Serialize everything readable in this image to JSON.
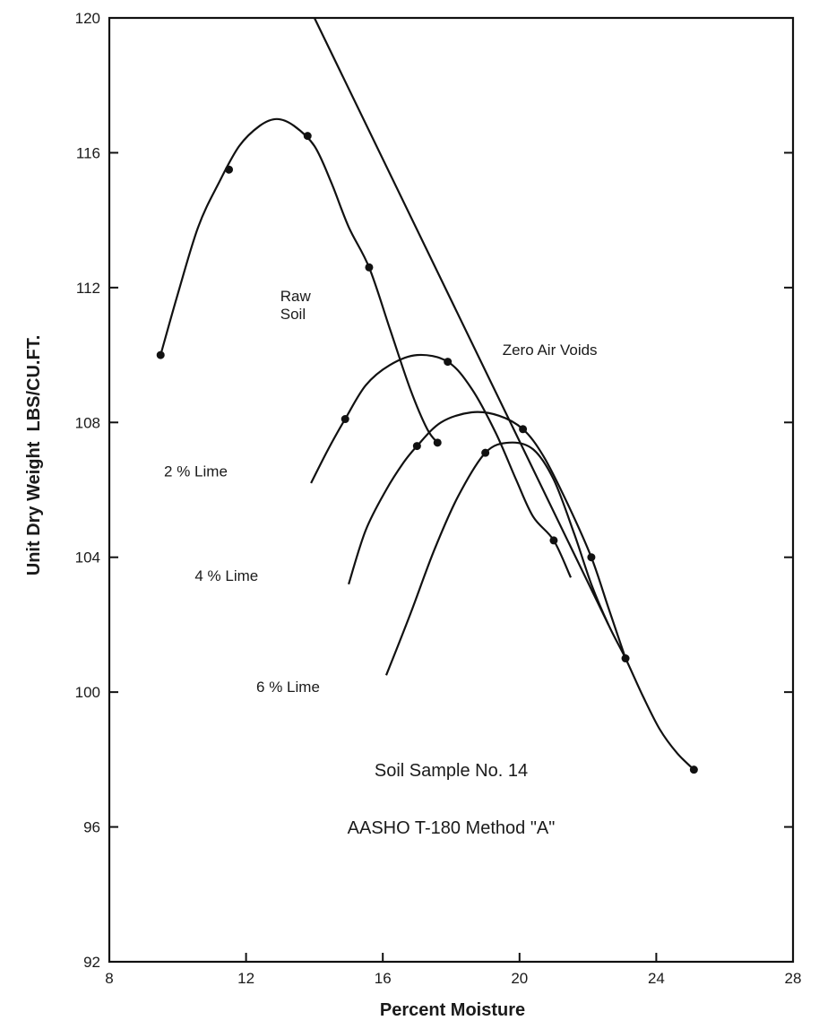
{
  "chart_data": {
    "type": "line",
    "title": "",
    "xlabel": "Percent Moisture",
    "ylabel": "Unit Dry Weight  LBS/CU.FT.",
    "xlim": [
      8,
      28
    ],
    "ylim": [
      92,
      120
    ],
    "x_ticks": [
      "8",
      "12",
      "16",
      "20",
      "24",
      "28"
    ],
    "y_ticks": [
      "92",
      "96",
      "100",
      "104",
      "108",
      "112",
      "116",
      "120"
    ],
    "grid": false,
    "series": [
      {
        "name": "Raw Soil",
        "label": "Raw\nSoil",
        "points": [
          [
            9.5,
            110.0
          ],
          [
            11.5,
            115.5
          ],
          [
            13.8,
            116.5
          ],
          [
            15.6,
            112.6
          ],
          [
            17.6,
            107.4
          ]
        ],
        "curve": [
          [
            9.5,
            110.0
          ],
          [
            10.0,
            111.8
          ],
          [
            10.6,
            113.8
          ],
          [
            11.2,
            115.1
          ],
          [
            11.8,
            116.2
          ],
          [
            12.4,
            116.8
          ],
          [
            12.9,
            117.0
          ],
          [
            13.4,
            116.8
          ],
          [
            14.0,
            116.2
          ],
          [
            14.5,
            115.1
          ],
          [
            15.0,
            113.8
          ],
          [
            15.6,
            112.6
          ],
          [
            16.2,
            110.8
          ],
          [
            16.8,
            109.0
          ],
          [
            17.3,
            107.8
          ],
          [
            17.6,
            107.4
          ]
        ],
        "label_at": [
          13.0,
          111.6
        ]
      },
      {
        "name": "2 % Lime",
        "label": "2 % Lime",
        "points": [
          [
            14.9,
            108.1
          ],
          [
            17.9,
            109.8
          ],
          [
            21.0,
            104.5
          ]
        ],
        "curve": [
          [
            13.9,
            106.2
          ],
          [
            14.4,
            107.2
          ],
          [
            14.9,
            108.1
          ],
          [
            15.5,
            109.1
          ],
          [
            16.2,
            109.7
          ],
          [
            17.0,
            110.0
          ],
          [
            17.9,
            109.8
          ],
          [
            18.6,
            109.0
          ],
          [
            19.3,
            107.7
          ],
          [
            19.9,
            106.3
          ],
          [
            20.4,
            105.2
          ],
          [
            21.0,
            104.5
          ],
          [
            21.5,
            103.4
          ]
        ],
        "label_at": [
          9.6,
          106.4
        ]
      },
      {
        "name": "4 % Lime",
        "label": "4 % Lime",
        "points": [
          [
            17.0,
            107.3
          ],
          [
            20.1,
            107.8
          ],
          [
            22.1,
            104.0
          ]
        ],
        "curve": [
          [
            15.0,
            103.2
          ],
          [
            15.5,
            104.8
          ],
          [
            16.1,
            106.0
          ],
          [
            16.6,
            106.8
          ],
          [
            17.0,
            107.3
          ],
          [
            17.7,
            108.0
          ],
          [
            18.6,
            108.3
          ],
          [
            19.4,
            108.2
          ],
          [
            20.1,
            107.8
          ],
          [
            20.7,
            107.0
          ],
          [
            21.4,
            105.6
          ],
          [
            22.1,
            104.0
          ],
          [
            22.6,
            102.5
          ],
          [
            23.1,
            101.0
          ]
        ],
        "label_at": [
          10.5,
          103.3
        ]
      },
      {
        "name": "6 % Lime",
        "label": "6 % Lime",
        "points": [
          [
            19.0,
            107.1
          ],
          [
            23.1,
            101.0
          ],
          [
            25.1,
            97.7
          ]
        ],
        "curve": [
          [
            16.1,
            100.5
          ],
          [
            16.8,
            102.3
          ],
          [
            17.5,
            104.2
          ],
          [
            18.2,
            105.8
          ],
          [
            19.0,
            107.1
          ],
          [
            19.7,
            107.4
          ],
          [
            20.4,
            107.2
          ],
          [
            21.0,
            106.3
          ],
          [
            21.6,
            104.7
          ],
          [
            22.1,
            103.2
          ],
          [
            22.6,
            102.0
          ],
          [
            23.1,
            101.0
          ],
          [
            23.6,
            99.9
          ],
          [
            24.1,
            98.9
          ],
          [
            24.6,
            98.2
          ],
          [
            25.1,
            97.7
          ]
        ],
        "label_at": [
          12.3,
          100.0
        ]
      },
      {
        "name": "Zero Air Voids",
        "label": "Zero Air Voids",
        "points": [],
        "curve": [
          [
            14.0,
            120.0
          ],
          [
            22.6,
            102.0
          ]
        ],
        "label_at": [
          19.5,
          110.0
        ]
      }
    ],
    "annotations": [
      {
        "text": "Soil Sample No. 14",
        "at": [
          18.0,
          97.5
        ]
      },
      {
        "text": "AASHO T-180 Method \"A\"",
        "at": [
          18.0,
          95.8
        ]
      }
    ]
  }
}
